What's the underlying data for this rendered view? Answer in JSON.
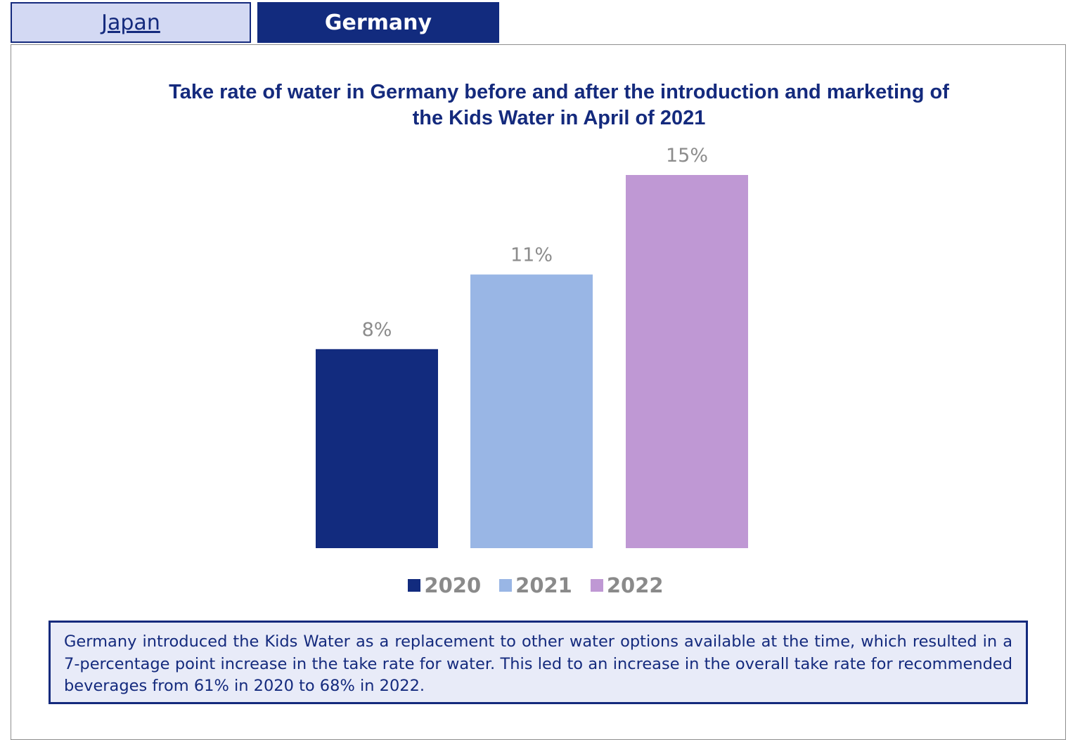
{
  "tabs": [
    {
      "label": "Japan",
      "active": false
    },
    {
      "label": "Germany",
      "active": true
    }
  ],
  "colors": {
    "tab_active_bg": "#122b7e",
    "tab_inactive_bg": "#d3d9f3",
    "title": "#142a7d",
    "label_gray": "#8c8c8c",
    "note_bg": "#e8ebf8",
    "note_border": "#142a7d"
  },
  "chart_data": {
    "type": "bar",
    "title": "Take rate of water in Germany before and after the introduction and marketing of the Kids Water in April of 2021",
    "categories": [
      "2020",
      "2021",
      "2022"
    ],
    "series": [
      {
        "name": "2020",
        "value": 8,
        "label": "8%",
        "color": "#122b7e"
      },
      {
        "name": "2021",
        "value": 11,
        "label": "11%",
        "color": "#99b6e5"
      },
      {
        "name": "2022",
        "value": 15,
        "label": "15%",
        "color": "#bf98d4"
      }
    ],
    "unit": "%",
    "ylim": [
      0,
      15
    ],
    "grid": false,
    "legend": "bottom"
  },
  "note": {
    "text": "Germany introduced the Kids Water as a replacement to other water options available at the time, which resulted in a 7-percentage point increase in the take rate for water. This led to an increase in the overall take rate for recommended beverages from 61% in 2020 to 68% in 2022."
  }
}
